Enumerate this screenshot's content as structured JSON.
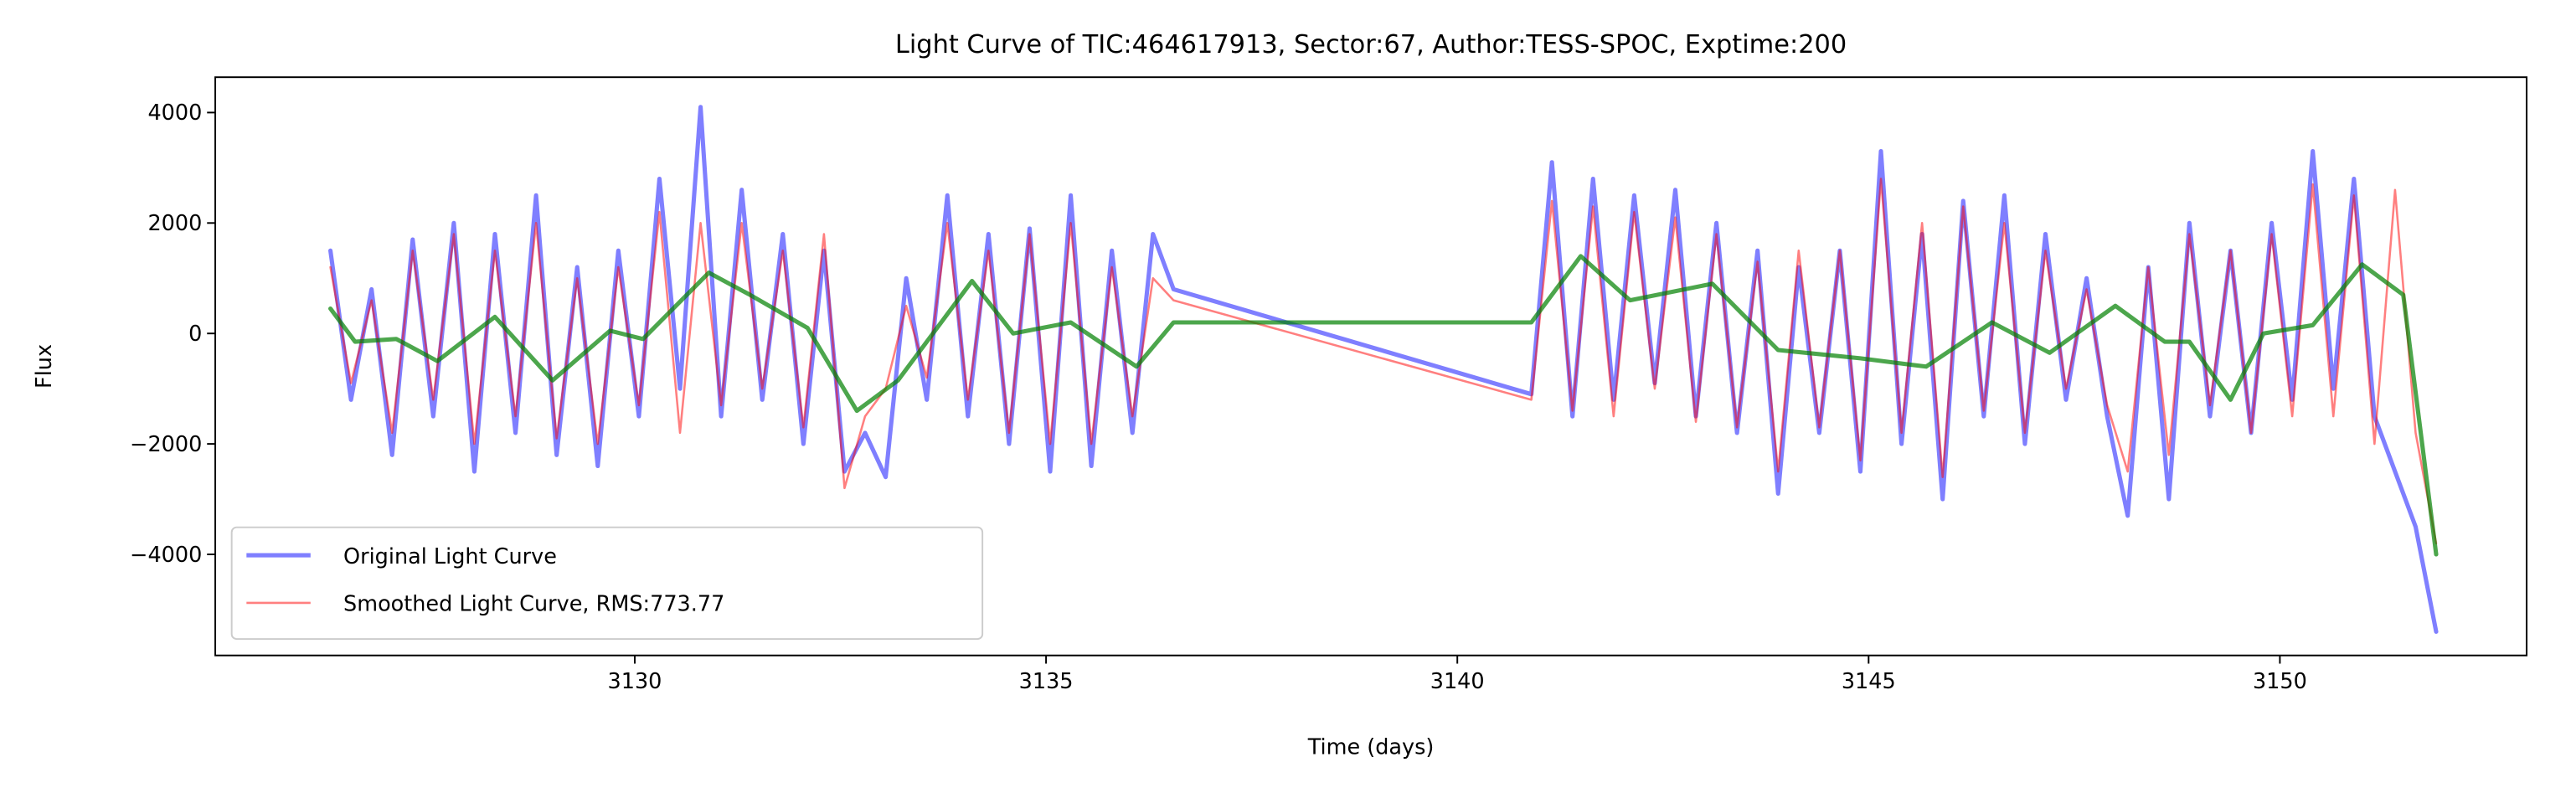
{
  "chart_data": {
    "type": "line",
    "title": "Light Curve of TIC:464617913, Sector:67, Author:TESS-SPOC, Exptime:200",
    "x_label": "Time (days)",
    "y_label": "Flux",
    "xlim": [
      3124.9,
      3153.0
    ],
    "ylim": [
      -5830,
      4640
    ],
    "xticks": [
      3130,
      3135,
      3140,
      3145,
      3150
    ],
    "yticks": [
      {
        "value": -4000,
        "label": "−4000"
      },
      {
        "value": -2000,
        "label": "−2000"
      },
      0,
      2000,
      4000
    ],
    "grid": false,
    "legend": "lower left",
    "x": [
      3126.3,
      3126.55,
      3126.8,
      3127.05,
      3127.3,
      3127.55,
      3127.8,
      3128.05,
      3128.3,
      3128.55,
      3128.8,
      3129.05,
      3129.3,
      3129.55,
      3129.8,
      3130.05,
      3130.3,
      3130.55,
      3130.8,
      3131.05,
      3131.3,
      3131.55,
      3131.8,
      3132.05,
      3132.3,
      3132.55,
      3132.8,
      3133.05,
      3133.3,
      3133.55,
      3133.8,
      3134.05,
      3134.3,
      3134.55,
      3134.8,
      3135.05,
      3135.3,
      3135.55,
      3135.8,
      3136.05,
      3136.3,
      3136.55,
      3140.9,
      3141.15,
      3141.4,
      3141.65,
      3141.9,
      3142.15,
      3142.4,
      3142.65,
      3142.9,
      3143.15,
      3143.4,
      3143.65,
      3143.9,
      3144.15,
      3144.4,
      3144.65,
      3144.9,
      3145.15,
      3145.4,
      3145.65,
      3145.9,
      3146.15,
      3146.4,
      3146.65,
      3146.9,
      3147.15,
      3147.4,
      3147.65,
      3147.9,
      3148.15,
      3148.4,
      3148.65,
      3148.9,
      3149.15,
      3149.4,
      3149.65,
      3149.9,
      3150.15,
      3150.4,
      3150.65,
      3150.9,
      3151.15,
      3151.4,
      3151.65,
      3151.9
    ],
    "series": [
      {
        "name": "Original Light Curve",
        "color": "#0000ff",
        "opacity": 0.5,
        "linewidth": 2.6,
        "values": [
          1500,
          -1200,
          800,
          -2200,
          1700,
          -1500,
          2000,
          -2500,
          1800,
          -1800,
          2500,
          -2200,
          1200,
          -2400,
          1500,
          -1500,
          2800,
          -1000,
          4100,
          -1500,
          2600,
          -1200,
          1800,
          -2000,
          1500,
          -2500,
          -1800,
          -2600,
          1000,
          -1200,
          2500,
          -1500,
          1800,
          -2000,
          1900,
          -2500,
          2500,
          -2400,
          1500,
          -1800,
          1800,
          800,
          -1100,
          3100,
          -1500,
          2800,
          -1200,
          2500,
          -900,
          2600,
          -1500,
          2000,
          -1800,
          1500,
          -2900,
          1200,
          -1800,
          1500,
          -2500,
          3300,
          -2000,
          1800,
          -3000,
          2400,
          -1500,
          2500,
          -2000,
          1800,
          -1200,
          1000,
          -1500,
          -3300,
          1200,
          -3000,
          2000,
          -1500,
          1500,
          -1800,
          2000,
          -1200,
          3300,
          -1000,
          2800,
          -1500,
          -2500,
          -3500,
          -5400
        ]
      },
      {
        "name": "Smoothed Light Curve, RMS:773.77",
        "color": "#ff0000",
        "opacity": 0.5,
        "linewidth": 1.3,
        "values": [
          1200,
          -900,
          600,
          -1800,
          1500,
          -1200,
          1800,
          -2000,
          1500,
          -1500,
          2000,
          -1900,
          1000,
          -2000,
          1200,
          -1300,
          2200,
          -1800,
          2000,
          -1300,
          2000,
          -1000,
          1500,
          -1700,
          1800,
          -2800,
          -1500,
          -1000,
          500,
          -800,
          2000,
          -1200,
          1500,
          -1800,
          1800,
          -2000,
          2000,
          -2000,
          1200,
          -1500,
          1000,
          600,
          -1200,
          2400,
          -1400,
          2300,
          -1500,
          2200,
          -1000,
          2100,
          -1600,
          1800,
          -1700,
          1300,
          -2500,
          1500,
          -1700,
          1500,
          -2300,
          2800,
          -1800,
          2000,
          -2600,
          2300,
          -1400,
          2000,
          -1800,
          1500,
          -1000,
          800,
          -1300,
          -2500,
          1200,
          -2200,
          1800,
          -1300,
          1500,
          -1800,
          1800,
          -1500,
          2700,
          -1500,
          2500,
          -2000,
          2600,
          -1800,
          -3800
        ]
      },
      {
        "color": "#008000",
        "opacity": 0.7,
        "linewidth": 2.6,
        "x": [
          3126.3,
          3126.6,
          3127.1,
          3127.6,
          3128.3,
          3129.0,
          3129.7,
          3130.1,
          3130.9,
          3131.4,
          3132.1,
          3132.7,
          3133.2,
          3134.1,
          3134.6,
          3135.3,
          3136.1,
          3136.55,
          3140.9,
          3141.5,
          3142.1,
          3143.1,
          3143.9,
          3144.9,
          3145.7,
          3146.5,
          3147.2,
          3148.0,
          3148.6,
          3148.9,
          3149.4,
          3149.8,
          3150.4,
          3151.0,
          3151.5,
          3151.9
        ],
        "values": [
          450,
          -150,
          -100,
          -500,
          300,
          -850,
          50,
          -100,
          1100,
          700,
          100,
          -1400,
          -850,
          950,
          0,
          200,
          -600,
          200,
          200,
          1400,
          600,
          900,
          -300,
          -450,
          -600,
          200,
          -350,
          500,
          -150,
          -150,
          -1200,
          0,
          150,
          1250,
          700,
          -4000
        ]
      }
    ]
  }
}
